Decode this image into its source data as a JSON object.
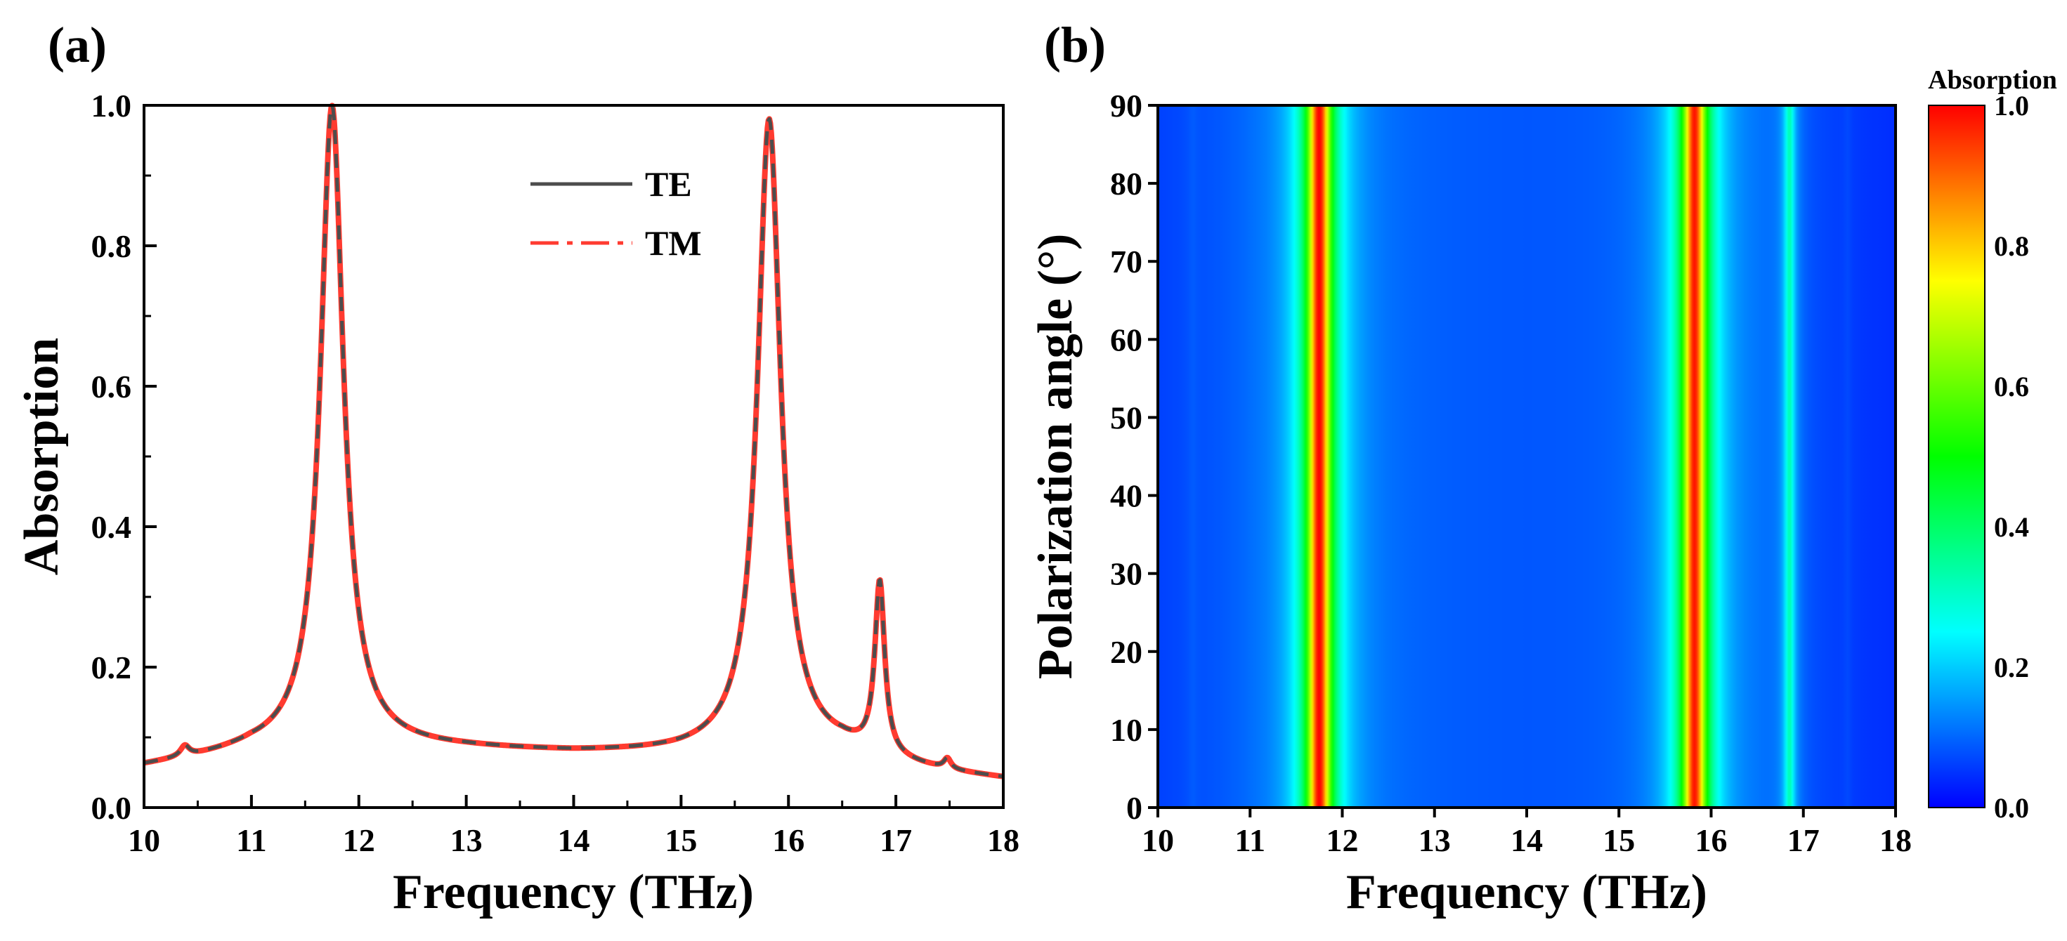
{
  "colors": {
    "te": "#4d4d4d",
    "tm": "#ff3b30",
    "colormap": [
      "#0000ff",
      "#00ffff",
      "#00ff00",
      "#ffff00",
      "#ff0000"
    ]
  },
  "chart_data": [
    {
      "panel_label": "(a)",
      "type": "line",
      "title": "",
      "xlabel": "Frequency (THz)",
      "ylabel": "Absorption",
      "xlim": [
        10,
        18
      ],
      "ylim": [
        0,
        1.0
      ],
      "xticks": [
        10,
        11,
        12,
        13,
        14,
        15,
        16,
        17,
        18
      ],
      "xtick_labels": [
        "10",
        "11",
        "12",
        "13",
        "14",
        "15",
        "16",
        "17",
        "18"
      ],
      "yticks": [
        0,
        0.2,
        0.4,
        0.6,
        0.8,
        1.0
      ],
      "ytick_labels": [
        "0.0",
        "0.2",
        "0.4",
        "0.6",
        "0.8",
        "1.0"
      ],
      "legend_position": "top-center",
      "peaks": [
        {
          "f": 10.38,
          "a": 0.015,
          "w": 0.05
        },
        {
          "f": 11.75,
          "a": 0.915,
          "w": 0.13
        },
        {
          "f": 15.82,
          "a": 0.9,
          "w": 0.13
        },
        {
          "f": 16.85,
          "a": 0.245,
          "w": 0.055
        },
        {
          "f": 17.48,
          "a": 0.015,
          "w": 0.04
        }
      ],
      "baseline": [
        [
          10,
          0.058
        ],
        [
          10.5,
          0.068
        ],
        [
          11,
          0.08
        ],
        [
          12,
          0.085
        ],
        [
          13,
          0.082
        ],
        [
          14,
          0.077
        ],
        [
          15,
          0.076
        ],
        [
          16,
          0.08
        ],
        [
          16.5,
          0.078
        ],
        [
          17,
          0.06
        ],
        [
          17.5,
          0.048
        ],
        [
          18,
          0.04
        ]
      ],
      "series": [
        {
          "name": "TE",
          "style": "solid",
          "color": "#4d4d4d"
        },
        {
          "name": "TM",
          "style": "dash-dot",
          "color": "#ff3b30"
        }
      ]
    },
    {
      "panel_label": "(b)",
      "type": "heatmap",
      "title": "",
      "xlabel": "Frequency (THz)",
      "ylabel": "Polarization angle (°)",
      "xlim": [
        10,
        18
      ],
      "ylim": [
        0,
        90
      ],
      "xticks": [
        10,
        11,
        12,
        13,
        14,
        15,
        16,
        17,
        18
      ],
      "xtick_labels": [
        "10",
        "11",
        "12",
        "13",
        "14",
        "15",
        "16",
        "17",
        "18"
      ],
      "yticks": [
        0,
        10,
        20,
        30,
        40,
        50,
        60,
        70,
        80,
        90
      ],
      "ytick_labels": [
        "0",
        "10",
        "20",
        "30",
        "40",
        "50",
        "60",
        "70",
        "80",
        "90"
      ],
      "note": "Absorption independent of polarization angle; each column equals the panel (a) spectrum",
      "colorbar": {
        "title": "Absorption",
        "range": [
          0,
          1.0
        ],
        "ticks": [
          0,
          0.2,
          0.4,
          0.6,
          0.8,
          1.0
        ],
        "tick_labels": [
          "0.0",
          "0.2",
          "0.4",
          "0.6",
          "0.8",
          "1.0"
        ]
      }
    }
  ]
}
